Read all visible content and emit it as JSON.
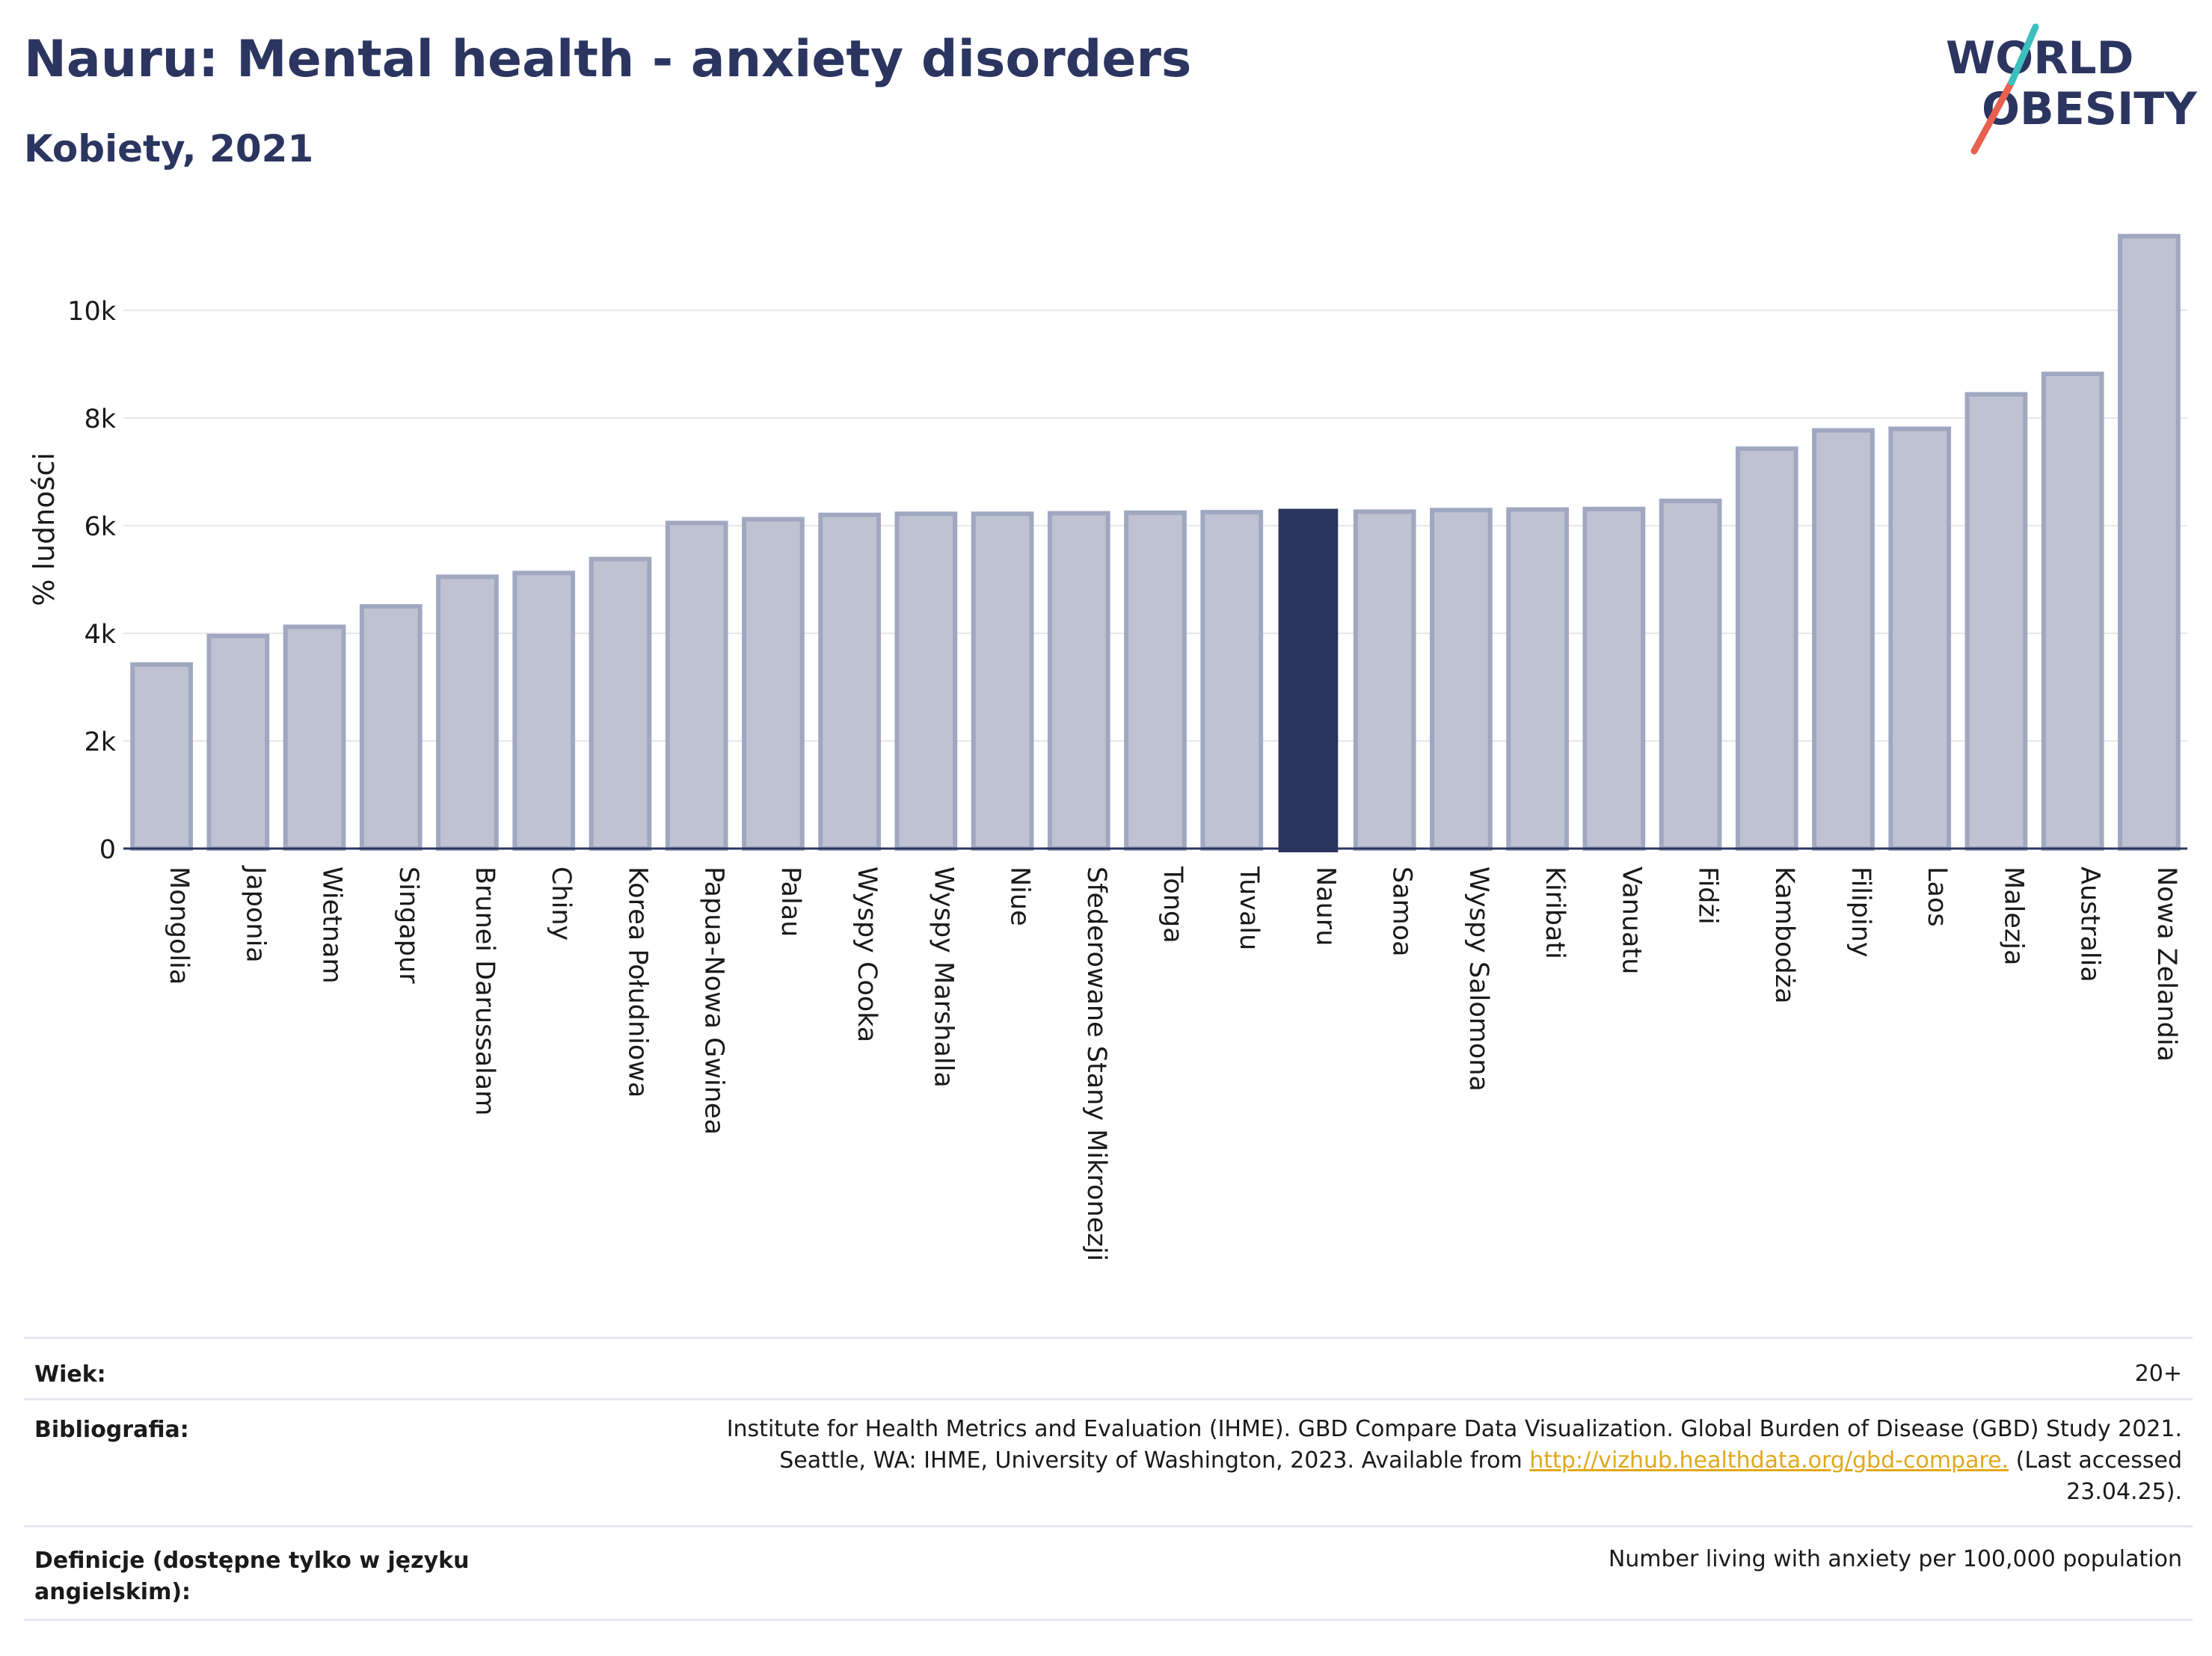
{
  "header": {
    "title": "Nauru: Mental health - anxiety disorders",
    "subtitle": "Kobiety, 2021",
    "logo_text_line1": "WORLD",
    "logo_text_line2": "OBESITY"
  },
  "colors": {
    "title": "#2b3560",
    "bar_default_fill": "#bfc3d1",
    "bar_default_stroke": "#a0a7c0",
    "bar_highlight_fill": "#2b3560",
    "axis_line": "#2b3560",
    "grid": "#e6e6ee",
    "logo_red": "#e8604f",
    "logo_teal": "#3bbfbf",
    "link": "#e0a81b"
  },
  "chart_data": {
    "type": "bar",
    "title": "Nauru: Mental health - anxiety disorders",
    "subtitle": "Kobiety, 2021",
    "xlabel": "",
    "ylabel": "% ludności",
    "ylim": [
      0,
      11600
    ],
    "yticks": [
      0,
      2000,
      4000,
      6000,
      8000,
      10000
    ],
    "ytick_labels": [
      "0",
      "2k",
      "4k",
      "6k",
      "8k",
      "10k"
    ],
    "grid": true,
    "highlight": "Nauru",
    "categories": [
      "Mongolia",
      "Japonia",
      "Wietnam",
      "Singapur",
      "Brunei Darussalam",
      "Chiny",
      "Korea Południowa",
      "Papua-Nowa Gwinea",
      "Palau",
      "Wyspy Cooka",
      "Wyspy Marshalla",
      "Niue",
      "Sfederowane Stany Mikronezji",
      "Tonga",
      "Tuvalu",
      "Nauru",
      "Samoa",
      "Wyspy Salomona",
      "Kiribati",
      "Vanuatu",
      "Fidżi",
      "Kambodża",
      "Filipiny",
      "Laos",
      "Malezja",
      "Australia",
      "Nowa Zelandia"
    ],
    "values": [
      3420,
      3950,
      4120,
      4500,
      5050,
      5120,
      5380,
      6050,
      6120,
      6200,
      6220,
      6220,
      6230,
      6240,
      6250,
      6300,
      6260,
      6290,
      6300,
      6310,
      6460,
      7430,
      7770,
      7800,
      8440,
      8820,
      11380
    ]
  },
  "info": {
    "age_label": "Wiek:",
    "age_value": "20+",
    "bib_label": "Bibliografia:",
    "bib_line1": "Institute for Health Metrics and Evaluation (IHME). GBD Compare Data Visualization. Global Burden of Disease (GBD) Study 2021.",
    "bib_line2_pre": "Seattle, WA: IHME, University of Washington, 2023. Available from ",
    "bib_link": "http://vizhub.healthdata.org/gbd-compare.",
    "bib_line2_post": " (Last accessed",
    "bib_line3": "23.04.25).",
    "def_label_line1": "Definicje (dostępne tylko w języku",
    "def_label_line2": "angielskim):",
    "def_value": "Number living with anxiety per 100,000 population"
  }
}
